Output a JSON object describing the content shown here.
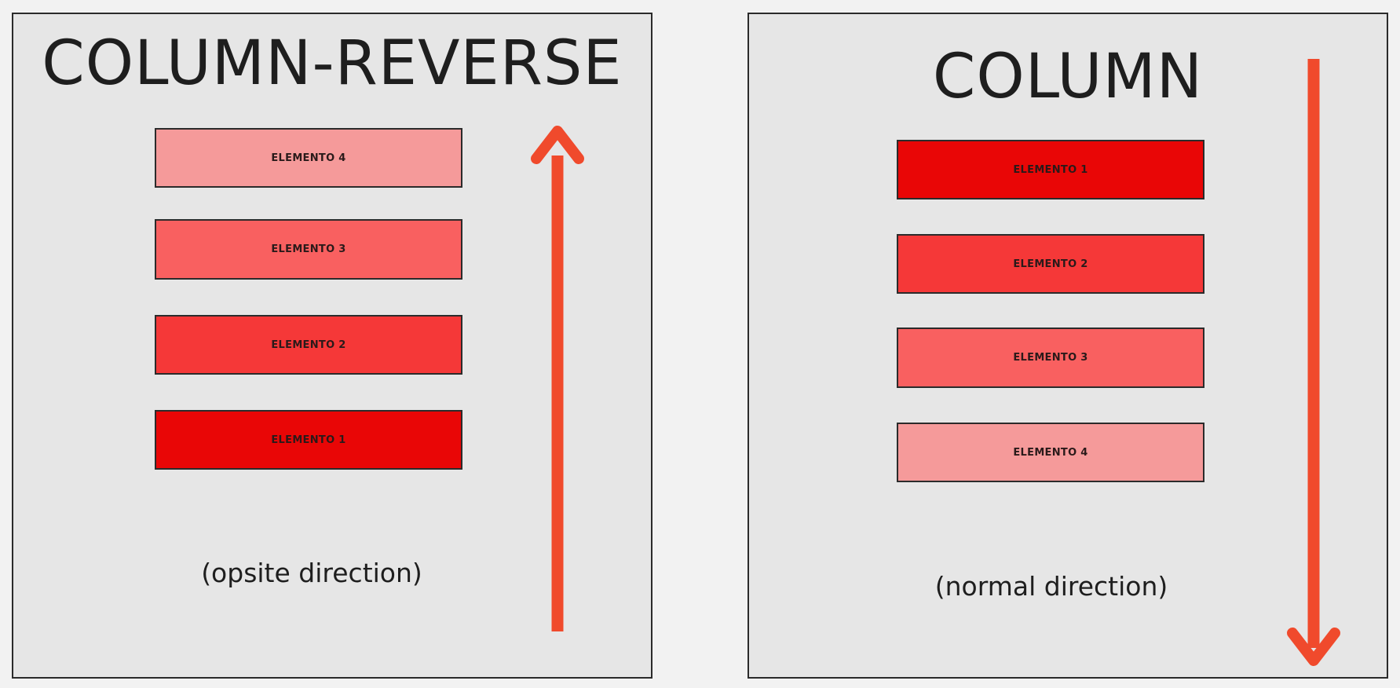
{
  "left_panel": {
    "title": "COLUMN-REVERSE",
    "caption": "(opsite direction)",
    "boxes": [
      {
        "label": "ELEMENTO 4",
        "color": "#f59a9a"
      },
      {
        "label": "ELEMENTO 3",
        "color": "#f96060"
      },
      {
        "label": "ELEMENTO 2",
        "color": "#f53838"
      },
      {
        "label": "ELEMENTO 1",
        "color": "#e90606"
      }
    ],
    "arrow_direction": "up"
  },
  "right_panel": {
    "title": "COLUMN",
    "caption": "(normal direction)",
    "boxes": [
      {
        "label": "ELEMENTO 1",
        "color": "#e90606"
      },
      {
        "label": "ELEMENTO 2",
        "color": "#f53838"
      },
      {
        "label": "ELEMENTO 3",
        "color": "#f96060"
      },
      {
        "label": "ELEMENTO 4",
        "color": "#f59a9a"
      }
    ],
    "arrow_direction": "down"
  },
  "colors": {
    "background": "#f2f2f2",
    "panel": "#e6e6e6",
    "border": "#2b2b2b",
    "arrow": "#f04a2c",
    "text": "#1e1e1e"
  }
}
